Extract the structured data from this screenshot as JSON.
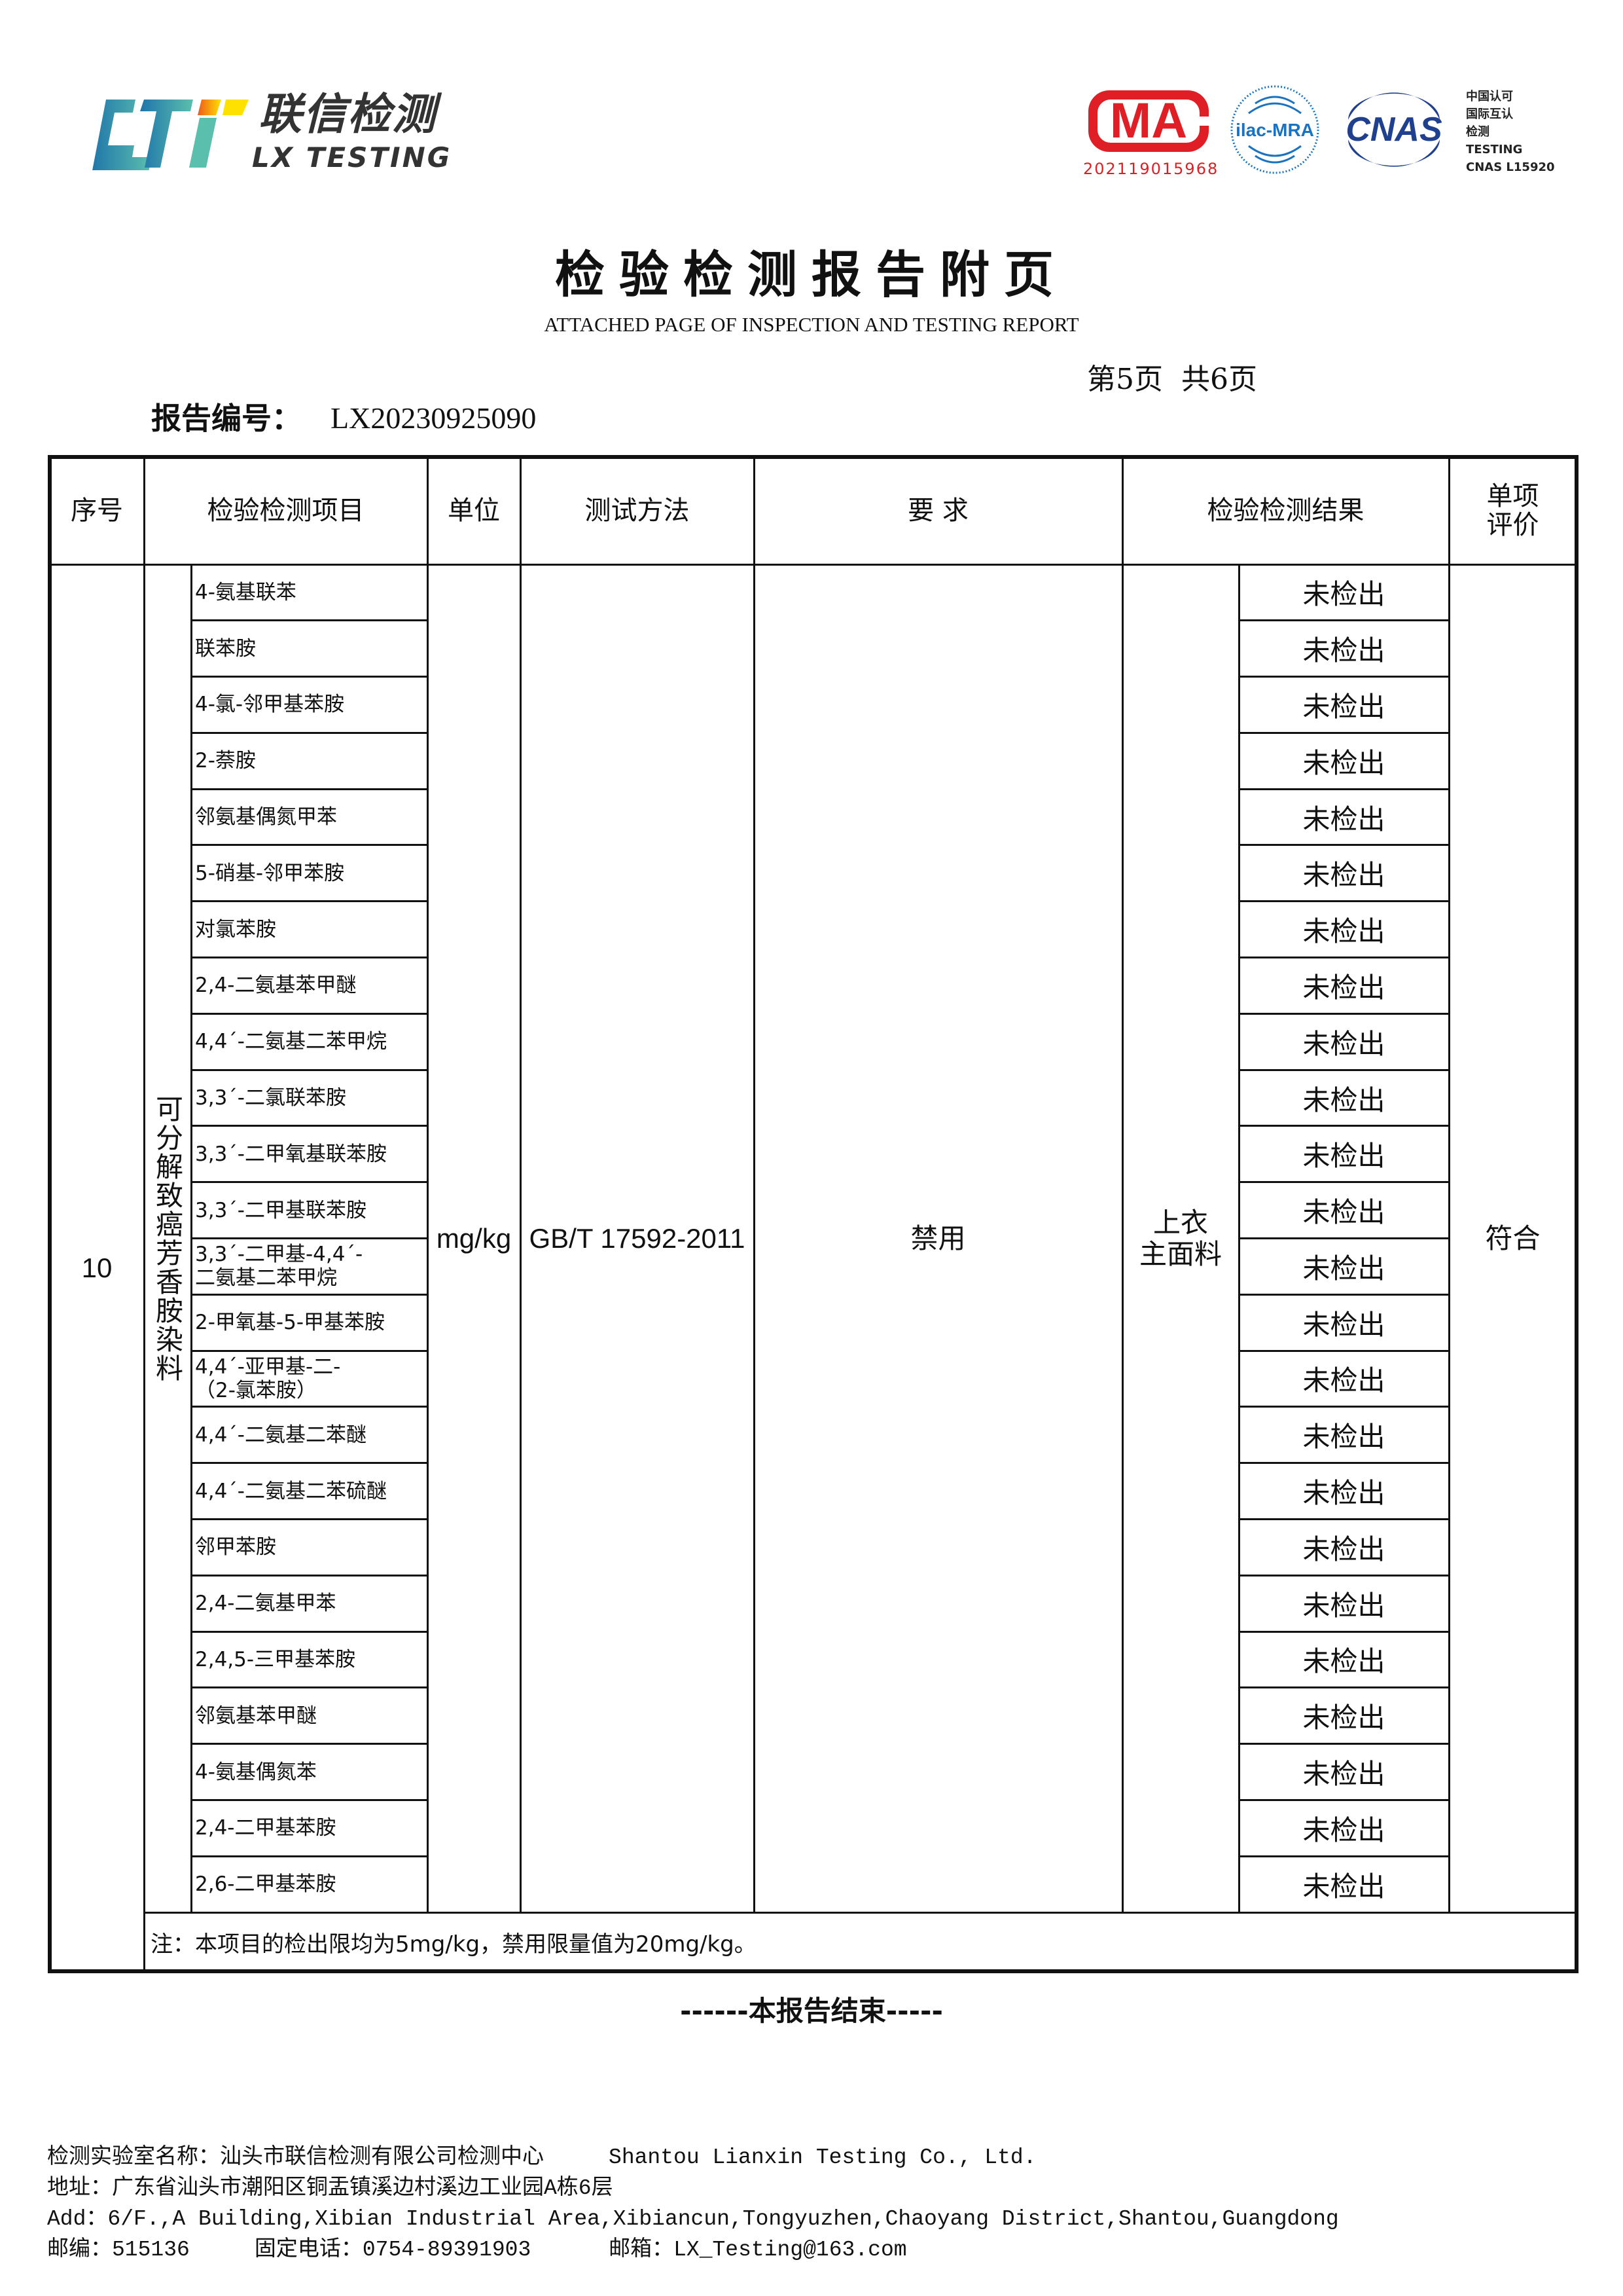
{
  "header": {
    "logo": {
      "mark": "LXT",
      "name_cn": "联信检测",
      "name_en": "LX TESTING",
      "colors": [
        "#1f75aa",
        "#5bbfad",
        "#ee5a1a",
        "#ffe100"
      ]
    },
    "cma": {
      "text": "MA",
      "number": "202119015968",
      "color": "#e01e26"
    },
    "ilac": {
      "text": "ilac-MRA",
      "color": "#1a73c0"
    },
    "cnas": {
      "text": "CNAS",
      "color": "#1f3f8f",
      "lines": [
        "中国认可",
        "国际互认",
        "检测",
        "TESTING",
        "CNAS L15920"
      ]
    }
  },
  "title": "检验检测报告附页",
  "subtitle": "ATTACHED PAGE OF INSPECTION AND TESTING REPORT",
  "page_indicator": "第5页  共6页",
  "report_no_label": "报告编号：",
  "report_no": "LX20230925090",
  "table": {
    "headers": {
      "seq": "序号",
      "item": "检验检测项目",
      "unit": "单位",
      "method": "测试方法",
      "requirement": "要 求",
      "result": "检验检测结果",
      "evaluation": "单项\n评价"
    },
    "row": {
      "seq": "10",
      "category": "可分解致癌芳香胺染料",
      "unit": "mg/kg",
      "method": "GB/T 17592-2011",
      "requirement": "禁用",
      "part": "上衣\n主面料",
      "evaluation": "符合",
      "items": [
        {
          "name": "4-氨基联苯",
          "result": "未检出"
        },
        {
          "name": "联苯胺",
          "result": "未检出"
        },
        {
          "name": "4-氯-邻甲基苯胺",
          "result": "未检出"
        },
        {
          "name": "2-萘胺",
          "result": "未检出"
        },
        {
          "name": "邻氨基偶氮甲苯",
          "result": "未检出"
        },
        {
          "name": "5-硝基-邻甲苯胺",
          "result": "未检出"
        },
        {
          "name": "对氯苯胺",
          "result": "未检出"
        },
        {
          "name": "2,4-二氨基苯甲醚",
          "result": "未检出"
        },
        {
          "name": "4,4´-二氨基二苯甲烷",
          "result": "未检出"
        },
        {
          "name": "3,3´-二氯联苯胺",
          "result": "未检出"
        },
        {
          "name": "3,3´-二甲氧基联苯胺",
          "result": "未检出"
        },
        {
          "name": "3,3´-二甲基联苯胺",
          "result": "未检出"
        },
        {
          "name": "3,3´-二甲基-4,4´-\n二氨基二苯甲烷",
          "result": "未检出"
        },
        {
          "name": "2-甲氧基-5-甲基苯胺",
          "result": "未检出"
        },
        {
          "name": "4,4´-亚甲基-二-\n（2-氯苯胺）",
          "result": "未检出"
        },
        {
          "name": "4,4´-二氨基二苯醚",
          "result": "未检出"
        },
        {
          "name": "4,4´-二氨基二苯硫醚",
          "result": "未检出"
        },
        {
          "name": "邻甲苯胺",
          "result": "未检出"
        },
        {
          "name": "2,4-二氨基甲苯",
          "result": "未检出"
        },
        {
          "name": "2,4,5-三甲基苯胺",
          "result": "未检出"
        },
        {
          "name": "邻氨基苯甲醚",
          "result": "未检出"
        },
        {
          "name": "4-氨基偶氮苯",
          "result": "未检出"
        },
        {
          "name": "2,4-二甲基苯胺",
          "result": "未检出"
        },
        {
          "name": "2,6-二甲基苯胺",
          "result": "未检出"
        }
      ]
    },
    "note": "注：本项目的检出限均为5mg/kg，禁用限量值为20mg/kg。"
  },
  "end_text": "------本报告结束-----",
  "footer": {
    "lab": "检测实验室名称：汕头市联信检测有限公司检测中心     Shantou Lianxin Testing Co., Ltd.",
    "address_cn": "地址：广东省汕头市潮阳区铜盂镇溪边村溪边工业园A栋6层",
    "address_en": "Add：6/F.,A Building,Xibian Industrial Area,Xibiancun,Tongyuzhen,Chaoyang District,Shantou,Guangdong",
    "contact": "邮编：515136     固定电话：0754-89391903      邮箱：LX_Testing@163.com"
  }
}
